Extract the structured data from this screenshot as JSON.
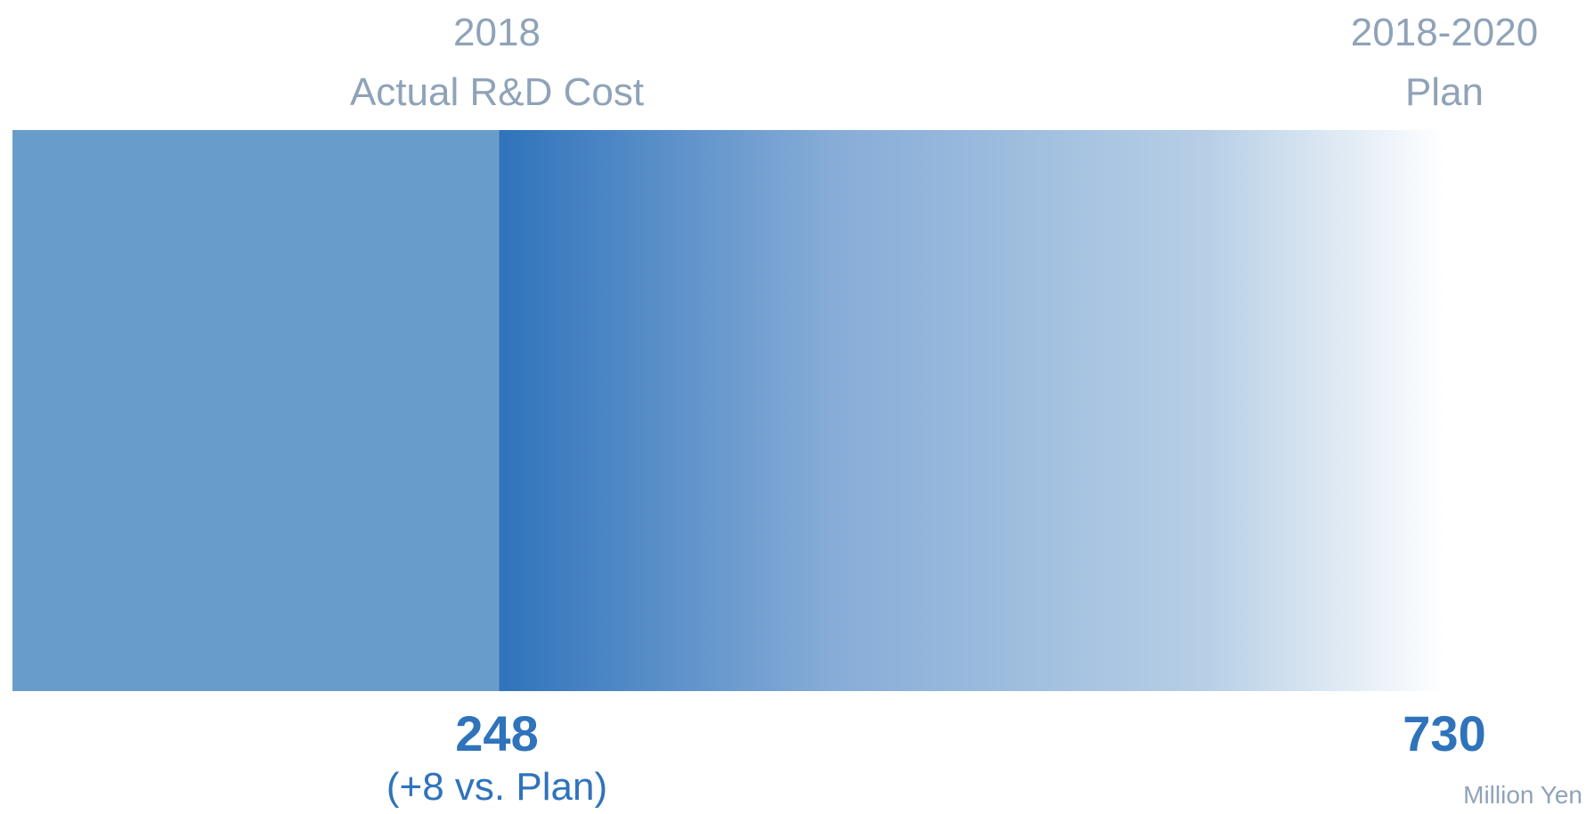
{
  "chart_data": {
    "type": "bar",
    "series": [
      {
        "year_label": "2018",
        "caption": "Actual R&D Cost",
        "value": 248,
        "note": "(+8 vs. Plan)",
        "color": "#689dcb"
      },
      {
        "year_label": "2018-2020",
        "caption": "Plan",
        "value": 730,
        "color": "#2f73bb"
      }
    ],
    "unit": "Million Yen"
  },
  "labels": {
    "actual_year": "2018",
    "actual_caption": "Actual R&D Cost",
    "actual_value": "248",
    "actual_note": "(+8 vs. Plan)",
    "plan_year": "2018-2020",
    "plan_caption": "Plan",
    "plan_value": "730",
    "unit": "Million Yen"
  },
  "colors": {
    "actual_bar": "#689dcb",
    "plan_bar_start": "#2f73bb",
    "plan_bar_end": "#ffffff",
    "text_muted": "#8fa3b8",
    "text_value": "#2f73bb"
  }
}
